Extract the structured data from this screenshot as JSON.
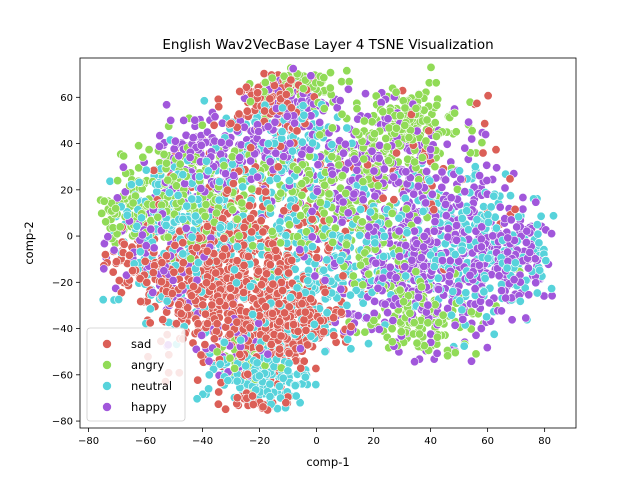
{
  "chart_data": {
    "type": "scatter",
    "title": "English Wav2VecBase Layer 4 TSNE Visualization",
    "xlabel": "comp-1",
    "ylabel": "comp-2",
    "xlim": [
      -83,
      91
    ],
    "ylim": [
      -83,
      77
    ],
    "xticks": [
      -80,
      -60,
      -40,
      -20,
      0,
      20,
      40,
      60,
      80
    ],
    "yticks": [
      -80,
      -60,
      -40,
      -20,
      0,
      20,
      40,
      60
    ],
    "xtick_labels": [
      "−80",
      "−60",
      "−40",
      "−20",
      "0",
      "20",
      "40",
      "60",
      "80"
    ],
    "ytick_labels": [
      "−80",
      "−60",
      "−40",
      "−20",
      "0",
      "20",
      "40",
      "60"
    ],
    "grid": false,
    "legend_position": "lower-left",
    "series": [
      {
        "name": "sad",
        "color": "#db5f57",
        "clusters": [
          {
            "cx": -30,
            "cy": -22,
            "sx": 14,
            "sy": 16,
            "n": 520
          },
          {
            "cx": -10,
            "cy": -40,
            "sx": 9,
            "sy": 9,
            "n": 200
          },
          {
            "cx": -15,
            "cy": 58,
            "sx": 7,
            "sy": 7,
            "n": 110
          },
          {
            "cx": -20,
            "cy": 5,
            "sx": 18,
            "sy": 20,
            "n": 160
          },
          {
            "cx": -62,
            "cy": -12,
            "sx": 8,
            "sy": 8,
            "n": 60
          },
          {
            "cx": -22,
            "cy": -72,
            "sx": 5,
            "sy": 3,
            "n": 30
          },
          {
            "cx": 30,
            "cy": 20,
            "sx": 25,
            "sy": 22,
            "n": 60
          }
        ]
      },
      {
        "name": "angry",
        "color": "#91db57",
        "clusters": [
          {
            "cx": -45,
            "cy": 18,
            "sx": 14,
            "sy": 12,
            "n": 230
          },
          {
            "cx": 10,
            "cy": 15,
            "sx": 16,
            "sy": 18,
            "n": 260
          },
          {
            "cx": 32,
            "cy": 48,
            "sx": 10,
            "sy": 9,
            "n": 150
          },
          {
            "cx": 35,
            "cy": -35,
            "sx": 10,
            "sy": 9,
            "n": 130
          },
          {
            "cx": -5,
            "cy": 65,
            "sx": 6,
            "sy": 4,
            "n": 60
          },
          {
            "cx": -70,
            "cy": 10,
            "sx": 5,
            "sy": 8,
            "n": 40
          },
          {
            "cx": -25,
            "cy": -55,
            "sx": 6,
            "sy": 5,
            "n": 40
          }
        ]
      },
      {
        "name": "neutral",
        "color": "#57d3db",
        "clusters": [
          {
            "cx": -18,
            "cy": -60,
            "sx": 9,
            "sy": 7,
            "n": 190
          },
          {
            "cx": -45,
            "cy": 5,
            "sx": 15,
            "sy": 18,
            "n": 260
          },
          {
            "cx": 5,
            "cy": -5,
            "sx": 22,
            "sy": 18,
            "n": 240
          },
          {
            "cx": 55,
            "cy": -5,
            "sx": 16,
            "sy": 16,
            "n": 240
          },
          {
            "cx": -10,
            "cy": 40,
            "sx": 10,
            "sy": 12,
            "n": 120
          },
          {
            "cx": -5,
            "cy": -30,
            "sx": 8,
            "sy": 8,
            "n": 80
          }
        ]
      },
      {
        "name": "happy",
        "color": "#a157db",
        "clusters": [
          {
            "cx": 50,
            "cy": -10,
            "sx": 16,
            "sy": 18,
            "n": 360
          },
          {
            "cx": 18,
            "cy": 28,
            "sx": 16,
            "sy": 16,
            "n": 250
          },
          {
            "cx": -35,
            "cy": 35,
            "sx": 12,
            "sy": 10,
            "n": 160
          },
          {
            "cx": -8,
            "cy": 52,
            "sx": 7,
            "sy": 9,
            "n": 90
          },
          {
            "cx": 25,
            "cy": -25,
            "sx": 14,
            "sy": 14,
            "n": 150
          },
          {
            "cx": -55,
            "cy": -5,
            "sx": 12,
            "sy": 14,
            "n": 110
          },
          {
            "cx": 72,
            "cy": -10,
            "sx": 6,
            "sy": 9,
            "n": 60
          },
          {
            "cx": -30,
            "cy": -45,
            "sx": 8,
            "sy": 7,
            "n": 50
          }
        ]
      }
    ],
    "legend": [
      "sad",
      "angry",
      "neutral",
      "happy"
    ]
  }
}
